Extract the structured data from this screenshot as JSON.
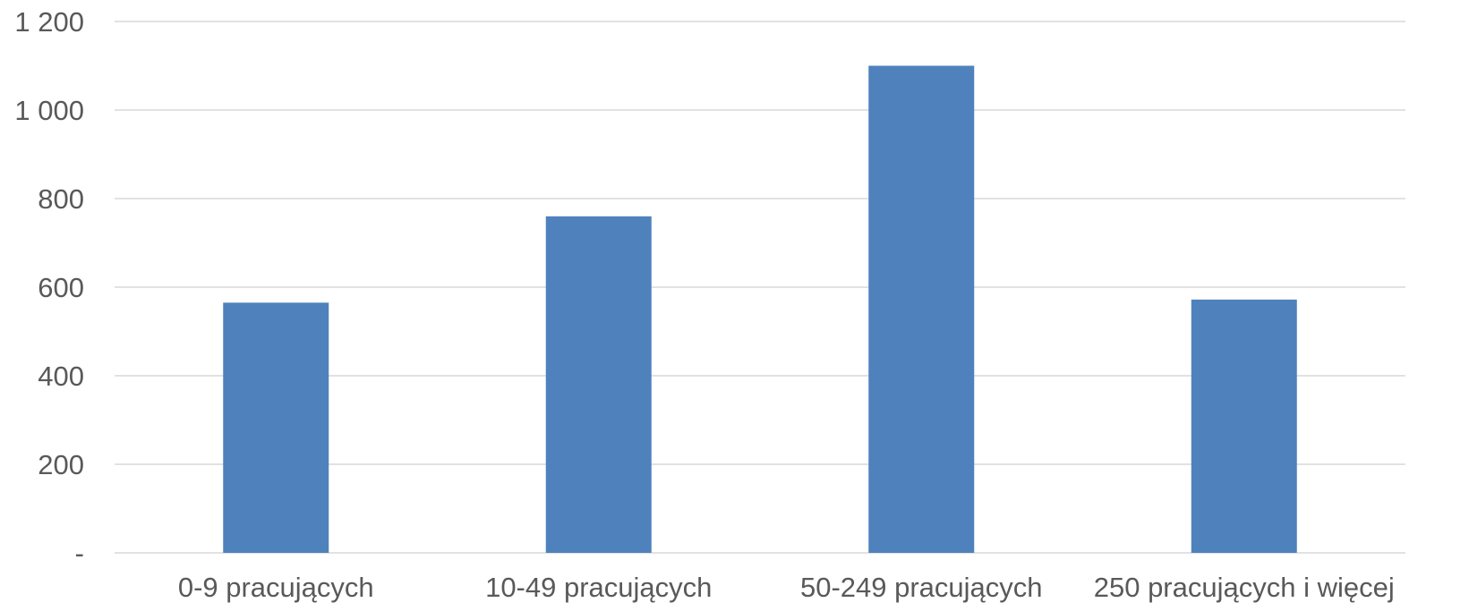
{
  "chart_data": {
    "type": "bar",
    "categories": [
      "0-9 pracujących",
      "10-49 pracujących",
      "50-249 pracujących",
      "250 pracujących i więcej"
    ],
    "values": [
      565,
      760,
      1100,
      572
    ],
    "ylim": [
      0,
      1200
    ],
    "yticks": [
      {
        "value": 0,
        "label": "-"
      },
      {
        "value": 200,
        "label": "200"
      },
      {
        "value": 400,
        "label": "400"
      },
      {
        "value": 600,
        "label": "600"
      },
      {
        "value": 800,
        "label": "800"
      },
      {
        "value": 1000,
        "label": "1 000"
      },
      {
        "value": 1200,
        "label": "1 200"
      }
    ],
    "grid": true,
    "legend": "none",
    "colors": {
      "bar": "#4f81bd",
      "grid": "#d9d9d9",
      "text": "#595959"
    }
  }
}
